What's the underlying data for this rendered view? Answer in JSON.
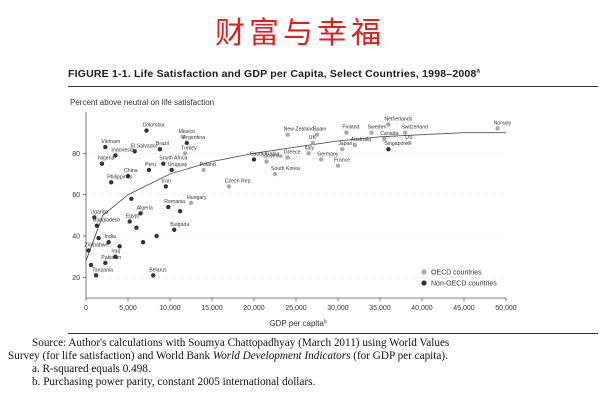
{
  "slide_title": "财富与幸福",
  "figure": {
    "title": "FIGURE 1-1. Life Satisfaction and GDP per Capita, Select Countries, 1998–2008",
    "title_sup": "a"
  },
  "colors": {
    "slide_title": "#e02020",
    "oecd_point": "#aaaaaa",
    "non_oecd_point": "#333333",
    "fit_line": "#555555",
    "axis": "#555555",
    "grid": "#dddddd"
  },
  "chart_data": {
    "type": "scatter",
    "title": "",
    "ylabel": "Percent above neutral on life satisfaction",
    "xlabel": "GDP per capita",
    "xlabel_sup": "b",
    "xlim": [
      0,
      50000
    ],
    "ylim": [
      10,
      100
    ],
    "x_ticks": [
      0,
      5000,
      10000,
      15000,
      20000,
      25000,
      30000,
      35000,
      40000,
      45000,
      50000
    ],
    "x_tick_labels": [
      "0",
      "5,000",
      "10,000",
      "15,000",
      "20,000",
      "25,000",
      "30,000",
      "35,000",
      "40,000",
      "45,000",
      "50,000"
    ],
    "y_ticks": [
      20,
      40,
      60,
      80
    ],
    "y_tick_labels": [
      "20",
      "40",
      "60",
      "80"
    ],
    "legend_position": "bottom-right",
    "series": [
      {
        "name": "OECD countries",
        "points": [
          {
            "label": "Mexico",
            "x": 11500,
            "y": 88
          },
          {
            "label": "Turkey",
            "x": 11800,
            "y": 80
          },
          {
            "label": "Poland",
            "x": 14000,
            "y": 72
          },
          {
            "label": "Czech Rep.",
            "x": 17000,
            "y": 64
          },
          {
            "label": "Hungary",
            "x": 12500,
            "y": 56
          },
          {
            "label": "Slovenia",
            "x": 21500,
            "y": 76
          },
          {
            "label": "South Korea",
            "x": 22500,
            "y": 70
          },
          {
            "label": "New Zealand",
            "x": 24000,
            "y": 89
          },
          {
            "label": "Greece",
            "x": 24000,
            "y": 78
          },
          {
            "label": "Spain",
            "x": 27500,
            "y": 89
          },
          {
            "label": "UK",
            "x": 27000,
            "y": 85
          },
          {
            "label": "Italy",
            "x": 26500,
            "y": 80
          },
          {
            "label": "Germany",
            "x": 28000,
            "y": 77
          },
          {
            "label": "Japan",
            "x": 30500,
            "y": 82
          },
          {
            "label": "Finland",
            "x": 31000,
            "y": 90
          },
          {
            "label": "Australia",
            "x": 32000,
            "y": 84
          },
          {
            "label": "France",
            "x": 30000,
            "y": 74
          },
          {
            "label": "Sweden",
            "x": 34000,
            "y": 90
          },
          {
            "label": "Netherlands",
            "x": 36000,
            "y": 94
          },
          {
            "label": "Canada",
            "x": 35500,
            "y": 87
          },
          {
            "label": "Switzerland",
            "x": 38000,
            "y": 90
          },
          {
            "label": "US",
            "x": 38500,
            "y": 85
          },
          {
            "label": "Norway",
            "x": 49000,
            "y": 92
          }
        ]
      },
      {
        "name": "Non-OECD countries",
        "points": [
          {
            "label": "Colombia",
            "x": 7200,
            "y": 91
          },
          {
            "label": "Vietnam",
            "x": 2300,
            "y": 83
          },
          {
            "label": "El Salvador",
            "x": 5800,
            "y": 81
          },
          {
            "label": "Brazil",
            "x": 8800,
            "y": 82
          },
          {
            "label": "Argentina",
            "x": 12000,
            "y": 85
          },
          {
            "label": "Indonesia",
            "x": 3500,
            "y": 79
          },
          {
            "label": "Nigeria",
            "x": 1900,
            "y": 75
          },
          {
            "label": "South Africa",
            "x": 9200,
            "y": 75
          },
          {
            "label": "Peru",
            "x": 7500,
            "y": 72
          },
          {
            "label": "Uruguay",
            "x": 10200,
            "y": 72
          },
          {
            "label": "China",
            "x": 5000,
            "y": 69
          },
          {
            "label": "Philippines",
            "x": 3000,
            "y": 66
          },
          {
            "label": "Iran",
            "x": 9500,
            "y": 64
          },
          {
            "label": "Saudi Arabia",
            "x": 20000,
            "y": 77
          },
          {
            "label": "Singapore",
            "x": 36000,
            "y": 82
          },
          {
            "label": "Uganda",
            "x": 1000,
            "y": 49
          },
          {
            "label": "Bangladesh",
            "x": 1300,
            "y": 45
          },
          {
            "label": "Algeria",
            "x": 6500,
            "y": 51
          },
          {
            "label": "Romania",
            "x": 9800,
            "y": 54
          },
          {
            "label": "Egypt",
            "x": 5200,
            "y": 47
          },
          {
            "label": "India",
            "x": 2700,
            "y": 37
          },
          {
            "label": "Bulgaria",
            "x": 10500,
            "y": 43
          },
          {
            "label": "Zimbabwe",
            "x": 300,
            "y": 33
          },
          {
            "label": "Iraq",
            "x": 3500,
            "y": 30
          },
          {
            "label": "Pakistan",
            "x": 2300,
            "y": 27
          },
          {
            "label": "Tanzania",
            "x": 1200,
            "y": 21
          },
          {
            "label": "Belarus",
            "x": 8000,
            "y": 21
          },
          {
            "label": "",
            "x": 1500,
            "y": 39
          },
          {
            "label": "",
            "x": 4000,
            "y": 35
          },
          {
            "label": "",
            "x": 6000,
            "y": 44
          },
          {
            "label": "",
            "x": 6800,
            "y": 37
          },
          {
            "label": "",
            "x": 8400,
            "y": 40
          },
          {
            "label": "",
            "x": 11200,
            "y": 52
          },
          {
            "label": "",
            "x": 600,
            "y": 26
          },
          {
            "label": "",
            "x": 5400,
            "y": 58
          }
        ]
      }
    ],
    "fit_line": {
      "type": "logarithmic",
      "points": [
        [
          0,
          28
        ],
        [
          2000,
          50
        ],
        [
          5000,
          60
        ],
        [
          10000,
          70
        ],
        [
          15000,
          76
        ],
        [
          20000,
          80
        ],
        [
          25000,
          83
        ],
        [
          30000,
          86
        ],
        [
          35000,
          88
        ],
        [
          40000,
          89
        ],
        [
          45000,
          90
        ],
        [
          50000,
          90
        ]
      ]
    }
  },
  "source": {
    "line1": "Source: Author's calculations with Soumya Chattopadhyay (March 2011) using World Values",
    "line2_pre": "Survey (for life satisfaction) and World Bank ",
    "line2_italic": "World Development Indicators",
    "line2_post": " (for GDP per capita).",
    "note_a": "a. R-squared equals 0.498.",
    "note_b": "b. Purchasing power parity, constant 2005 international dollars."
  }
}
